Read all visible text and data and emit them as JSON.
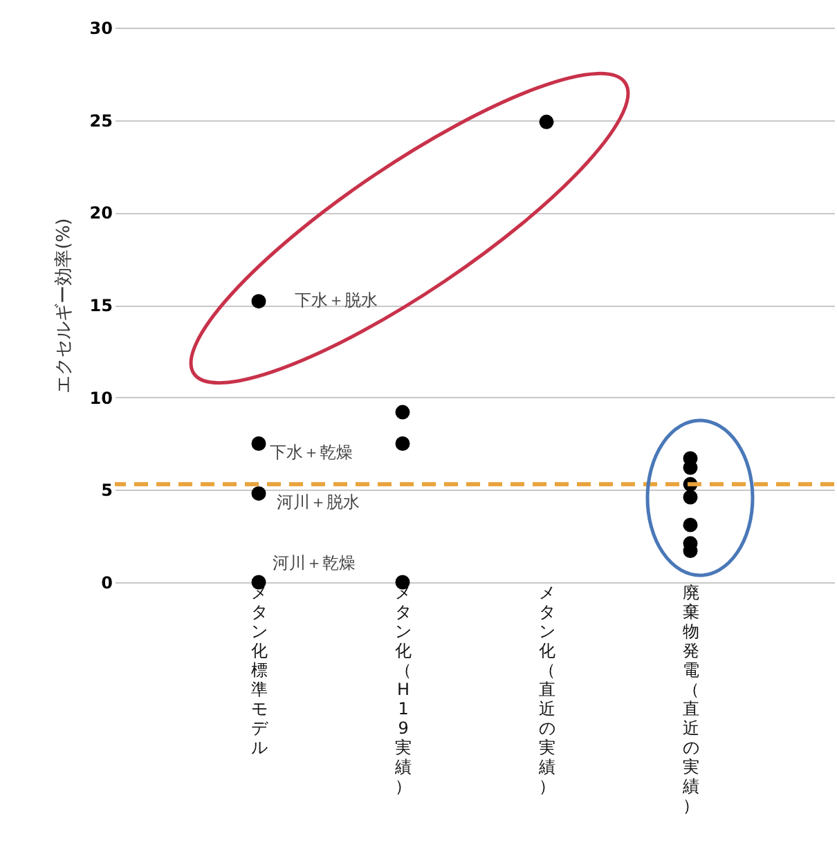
{
  "chart_data": {
    "type": "scatter",
    "ylabel": "エクセルギー効率(%)",
    "categories": [
      "メタン化標準モデル",
      "メタン化（H19実績）",
      "メタン化（直近の実績）",
      "廃棄物発電（直近の実績）"
    ],
    "series": [
      {
        "color": "#000000",
        "x": [
          "メタン化標準モデル",
          "メタン化標準モデル",
          "メタン化標準モデル",
          "メタン化標準モデル",
          "メタン化（H19実績）",
          "メタン化（H19実績）",
          "メタン化（H19実績）",
          "メタン化（直近の実績）",
          "廃棄物発電（直近の実績）",
          "廃棄物発電（直近の実績）",
          "廃棄物発電（直近の実績）",
          "廃棄物発電（直近の実績）",
          "廃棄物発電（直近の実績）",
          "廃棄物発電（直近の実績）",
          "廃棄物発電（直近の実績）"
        ],
        "values": [
          15.2,
          7.5,
          4.8,
          0,
          9.2,
          7.5,
          0,
          24.9,
          6.7,
          6.2,
          5.3,
          4.6,
          3.1,
          2.1,
          1.7
        ]
      }
    ],
    "ylim": [
      0,
      30
    ],
    "yticks": [
      0,
      5,
      10,
      15,
      20,
      25,
      30
    ],
    "grid": "y",
    "marker": "circle",
    "ref_lines": [
      {
        "axis": "y",
        "value": 5.3,
        "color": "#e8a33c",
        "line_style": "dashed"
      }
    ],
    "annotations": [
      "下水＋脱水",
      "下水＋乾燥",
      "河川＋脱水",
      "河川＋乾燥"
    ]
  }
}
